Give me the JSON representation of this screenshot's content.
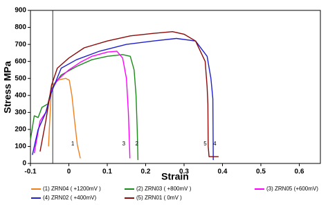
{
  "chart_data": {
    "type": "line",
    "xlabel": "Strain",
    "ylabel": "Stress MPa",
    "xlim": [
      -0.1,
      0.655
    ],
    "ylim": [
      0,
      900
    ],
    "xticks": [
      -0.1,
      0,
      0.1,
      0.2,
      0.3,
      0.4,
      0.5,
      0.6
    ],
    "yticks": [
      0,
      100,
      200,
      300,
      400,
      500,
      600,
      700,
      800,
      900
    ],
    "vline_x": -0.042,
    "series": [
      {
        "name": "(1) ZRN04  ( +1200mV )",
        "color": "#f07f1e",
        "x": [
          -0.053,
          -0.046,
          -0.039,
          -0.026,
          -0.008,
          0.001,
          0.008,
          0.015,
          0.022,
          0.03
        ],
        "values": [
          100,
          430,
          470,
          492,
          500,
          490,
          400,
          250,
          110,
          30
        ]
      },
      {
        "name": "(2) ZRN03  ( +800mV )",
        "color": "#1a8a1a",
        "x": [
          -0.1,
          -0.09,
          -0.08,
          -0.07,
          -0.055,
          -0.045,
          -0.02,
          0.02,
          0.06,
          0.1,
          0.14,
          0.16,
          0.17,
          0.175,
          0.178,
          0.18
        ],
        "values": [
          140,
          280,
          270,
          330,
          350,
          440,
          520,
          570,
          610,
          630,
          640,
          630,
          550,
          400,
          200,
          20
        ]
      },
      {
        "name": "(3) ZRN05  (+600mV)",
        "color": "#ff00ff",
        "x": [
          -0.09,
          -0.075,
          -0.06,
          -0.045,
          -0.03,
          0,
          0.03,
          0.06,
          0.1,
          0.125,
          0.14,
          0.15,
          0.155,
          0.158,
          0.159
        ],
        "values": [
          60,
          250,
          300,
          430,
          490,
          550,
          595,
          630,
          655,
          660,
          620,
          500,
          300,
          100,
          30
        ]
      },
      {
        "name": "(4) ZRN02  ( +400mV)",
        "color": "#1f1fd0",
        "x": [
          -0.095,
          -0.08,
          -0.06,
          -0.045,
          -0.02,
          0.02,
          0.08,
          0.15,
          0.22,
          0.28,
          0.33,
          0.36,
          0.37,
          0.375,
          0.376
        ],
        "values": [
          50,
          200,
          300,
          420,
          560,
          610,
          660,
          700,
          720,
          735,
          720,
          630,
          500,
          380,
          20
        ]
      },
      {
        "name": "(5) ZRN01  ( 0mV )",
        "color": "#8b0a0a",
        "x": [
          -0.075,
          -0.06,
          -0.045,
          -0.03,
          0,
          0.04,
          0.1,
          0.16,
          0.22,
          0.27,
          0.3,
          0.33,
          0.355,
          0.36,
          0.362,
          0.363,
          0.365,
          0.39
        ],
        "values": [
          70,
          250,
          460,
          560,
          620,
          680,
          720,
          750,
          765,
          775,
          760,
          720,
          600,
          450,
          350,
          100,
          40,
          40
        ]
      }
    ],
    "annotations": [
      {
        "text": "1",
        "x": 0.01,
        "y": 114
      },
      {
        "text": "3",
        "x": 0.143,
        "y": 114
      },
      {
        "text": "2",
        "x": 0.177,
        "y": 114
      },
      {
        "text": "5",
        "x": 0.355,
        "y": 114
      },
      {
        "text": "4",
        "x": 0.38,
        "y": 114
      }
    ]
  }
}
